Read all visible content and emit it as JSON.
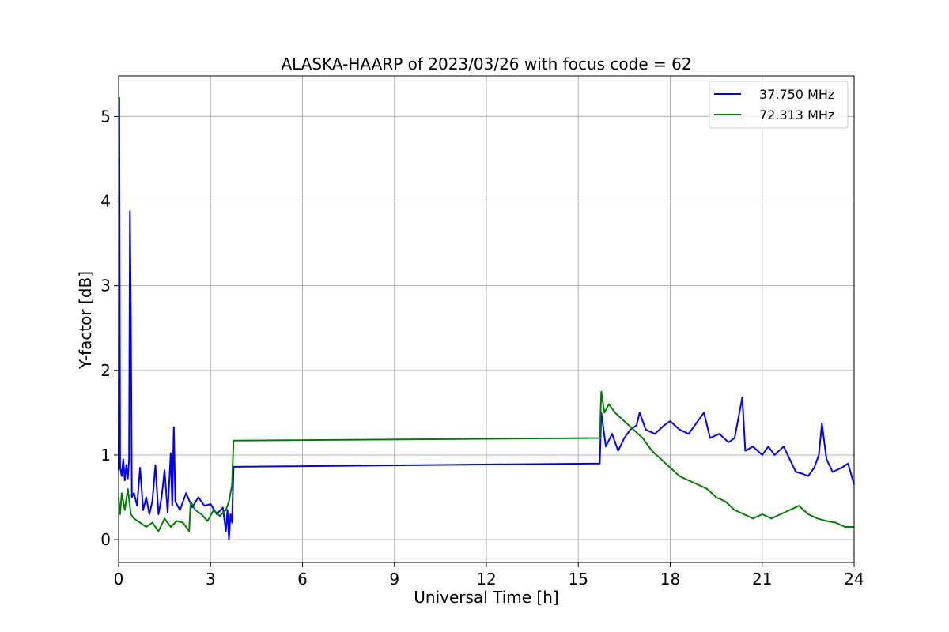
{
  "chart_data": {
    "type": "line",
    "title": "ALASKA-HAARP of 2023/03/26 with focus code = 62",
    "xlabel": "Universal Time [h]",
    "ylabel": "Y-factor [dB]",
    "xlim": [
      0,
      24
    ],
    "ylim": [
      -0.27,
      5.48
    ],
    "xticks": [
      0,
      3,
      6,
      9,
      12,
      15,
      18,
      21,
      24
    ],
    "xtick_labels": [
      "0",
      "3",
      "6",
      "9",
      "12",
      "15",
      "18",
      "21",
      "24"
    ],
    "yticks": [
      0,
      1,
      2,
      3,
      4,
      5
    ],
    "ytick_labels": [
      "0",
      "1",
      "2",
      "3",
      "4",
      "5"
    ],
    "grid": true,
    "legend_position": "top-right",
    "series": [
      {
        "name": "37.750 MHz",
        "color": "#0000ff",
        "points": [
          [
            0.0,
            0.82
          ],
          [
            0.02,
            5.22
          ],
          [
            0.05,
            0.85
          ],
          [
            0.1,
            0.75
          ],
          [
            0.15,
            0.95
          ],
          [
            0.2,
            0.7
          ],
          [
            0.25,
            0.88
          ],
          [
            0.3,
            0.72
          ],
          [
            0.34,
            0.95
          ],
          [
            0.37,
            3.88
          ],
          [
            0.4,
            2.6
          ],
          [
            0.43,
            0.5
          ],
          [
            0.5,
            0.55
          ],
          [
            0.6,
            0.4
          ],
          [
            0.7,
            0.85
          ],
          [
            0.8,
            0.35
          ],
          [
            0.9,
            0.5
          ],
          [
            1.0,
            0.3
          ],
          [
            1.1,
            0.45
          ],
          [
            1.2,
            0.88
          ],
          [
            1.3,
            0.3
          ],
          [
            1.4,
            0.5
          ],
          [
            1.5,
            0.82
          ],
          [
            1.6,
            0.32
          ],
          [
            1.7,
            1.02
          ],
          [
            1.75,
            0.4
          ],
          [
            1.8,
            1.33
          ],
          [
            1.85,
            0.45
          ],
          [
            2.0,
            0.35
          ],
          [
            2.2,
            0.55
          ],
          [
            2.4,
            0.38
          ],
          [
            2.6,
            0.5
          ],
          [
            2.8,
            0.4
          ],
          [
            3.0,
            0.42
          ],
          [
            3.2,
            0.3
          ],
          [
            3.4,
            0.38
          ],
          [
            3.5,
            0.1
          ],
          [
            3.55,
            0.35
          ],
          [
            3.6,
            0.0
          ],
          [
            3.65,
            0.3
          ],
          [
            3.7,
            0.2
          ],
          [
            3.75,
            0.86
          ],
          [
            15.7,
            0.9
          ],
          [
            15.75,
            1.5
          ],
          [
            15.9,
            1.1
          ],
          [
            16.1,
            1.25
          ],
          [
            16.3,
            1.05
          ],
          [
            16.5,
            1.2
          ],
          [
            16.7,
            1.3
          ],
          [
            16.9,
            1.35
          ],
          [
            17.0,
            1.5
          ],
          [
            17.2,
            1.3
          ],
          [
            17.5,
            1.25
          ],
          [
            17.8,
            1.35
          ],
          [
            18.0,
            1.4
          ],
          [
            18.3,
            1.3
          ],
          [
            18.6,
            1.25
          ],
          [
            18.9,
            1.4
          ],
          [
            19.1,
            1.5
          ],
          [
            19.3,
            1.2
          ],
          [
            19.6,
            1.25
          ],
          [
            19.9,
            1.15
          ],
          [
            20.1,
            1.2
          ],
          [
            20.35,
            1.68
          ],
          [
            20.45,
            1.05
          ],
          [
            20.7,
            1.1
          ],
          [
            21.0,
            1.0
          ],
          [
            21.2,
            1.1
          ],
          [
            21.4,
            1.0
          ],
          [
            21.7,
            1.1
          ],
          [
            21.9,
            0.95
          ],
          [
            22.1,
            0.8
          ],
          [
            22.3,
            0.78
          ],
          [
            22.5,
            0.75
          ],
          [
            22.7,
            0.85
          ],
          [
            22.85,
            1.0
          ],
          [
            22.95,
            1.37
          ],
          [
            23.1,
            0.95
          ],
          [
            23.3,
            0.8
          ],
          [
            23.6,
            0.85
          ],
          [
            23.8,
            0.9
          ],
          [
            24.0,
            0.65
          ]
        ]
      },
      {
        "name": "72.313 MHz",
        "color": "#008000",
        "points": [
          [
            0.0,
            0.5
          ],
          [
            0.05,
            0.3
          ],
          [
            0.1,
            0.55
          ],
          [
            0.2,
            0.35
          ],
          [
            0.3,
            0.6
          ],
          [
            0.4,
            0.3
          ],
          [
            0.5,
            0.25
          ],
          [
            0.7,
            0.2
          ],
          [
            0.9,
            0.15
          ],
          [
            1.1,
            0.2
          ],
          [
            1.3,
            0.1
          ],
          [
            1.5,
            0.25
          ],
          [
            1.7,
            0.15
          ],
          [
            1.9,
            0.22
          ],
          [
            2.1,
            0.2
          ],
          [
            2.3,
            0.1
          ],
          [
            2.35,
            0.45
          ],
          [
            2.5,
            0.35
          ],
          [
            2.7,
            0.3
          ],
          [
            2.9,
            0.22
          ],
          [
            3.1,
            0.35
          ],
          [
            3.3,
            0.28
          ],
          [
            3.5,
            0.35
          ],
          [
            3.6,
            0.45
          ],
          [
            3.7,
            0.65
          ],
          [
            3.75,
            1.17
          ],
          [
            15.7,
            1.2
          ],
          [
            15.75,
            1.75
          ],
          [
            15.85,
            1.5
          ],
          [
            16.0,
            1.6
          ],
          [
            16.2,
            1.5
          ],
          [
            16.5,
            1.4
          ],
          [
            16.8,
            1.3
          ],
          [
            17.1,
            1.2
          ],
          [
            17.4,
            1.05
          ],
          [
            17.7,
            0.95
          ],
          [
            18.0,
            0.85
          ],
          [
            18.3,
            0.75
          ],
          [
            18.6,
            0.7
          ],
          [
            18.9,
            0.65
          ],
          [
            19.2,
            0.6
          ],
          [
            19.5,
            0.5
          ],
          [
            19.8,
            0.45
          ],
          [
            20.1,
            0.35
          ],
          [
            20.4,
            0.3
          ],
          [
            20.7,
            0.25
          ],
          [
            21.0,
            0.3
          ],
          [
            21.3,
            0.25
          ],
          [
            21.6,
            0.3
          ],
          [
            21.9,
            0.35
          ],
          [
            22.2,
            0.4
          ],
          [
            22.5,
            0.3
          ],
          [
            22.8,
            0.25
          ],
          [
            23.1,
            0.22
          ],
          [
            23.4,
            0.2
          ],
          [
            23.7,
            0.15
          ],
          [
            24.0,
            0.15
          ]
        ]
      }
    ]
  }
}
